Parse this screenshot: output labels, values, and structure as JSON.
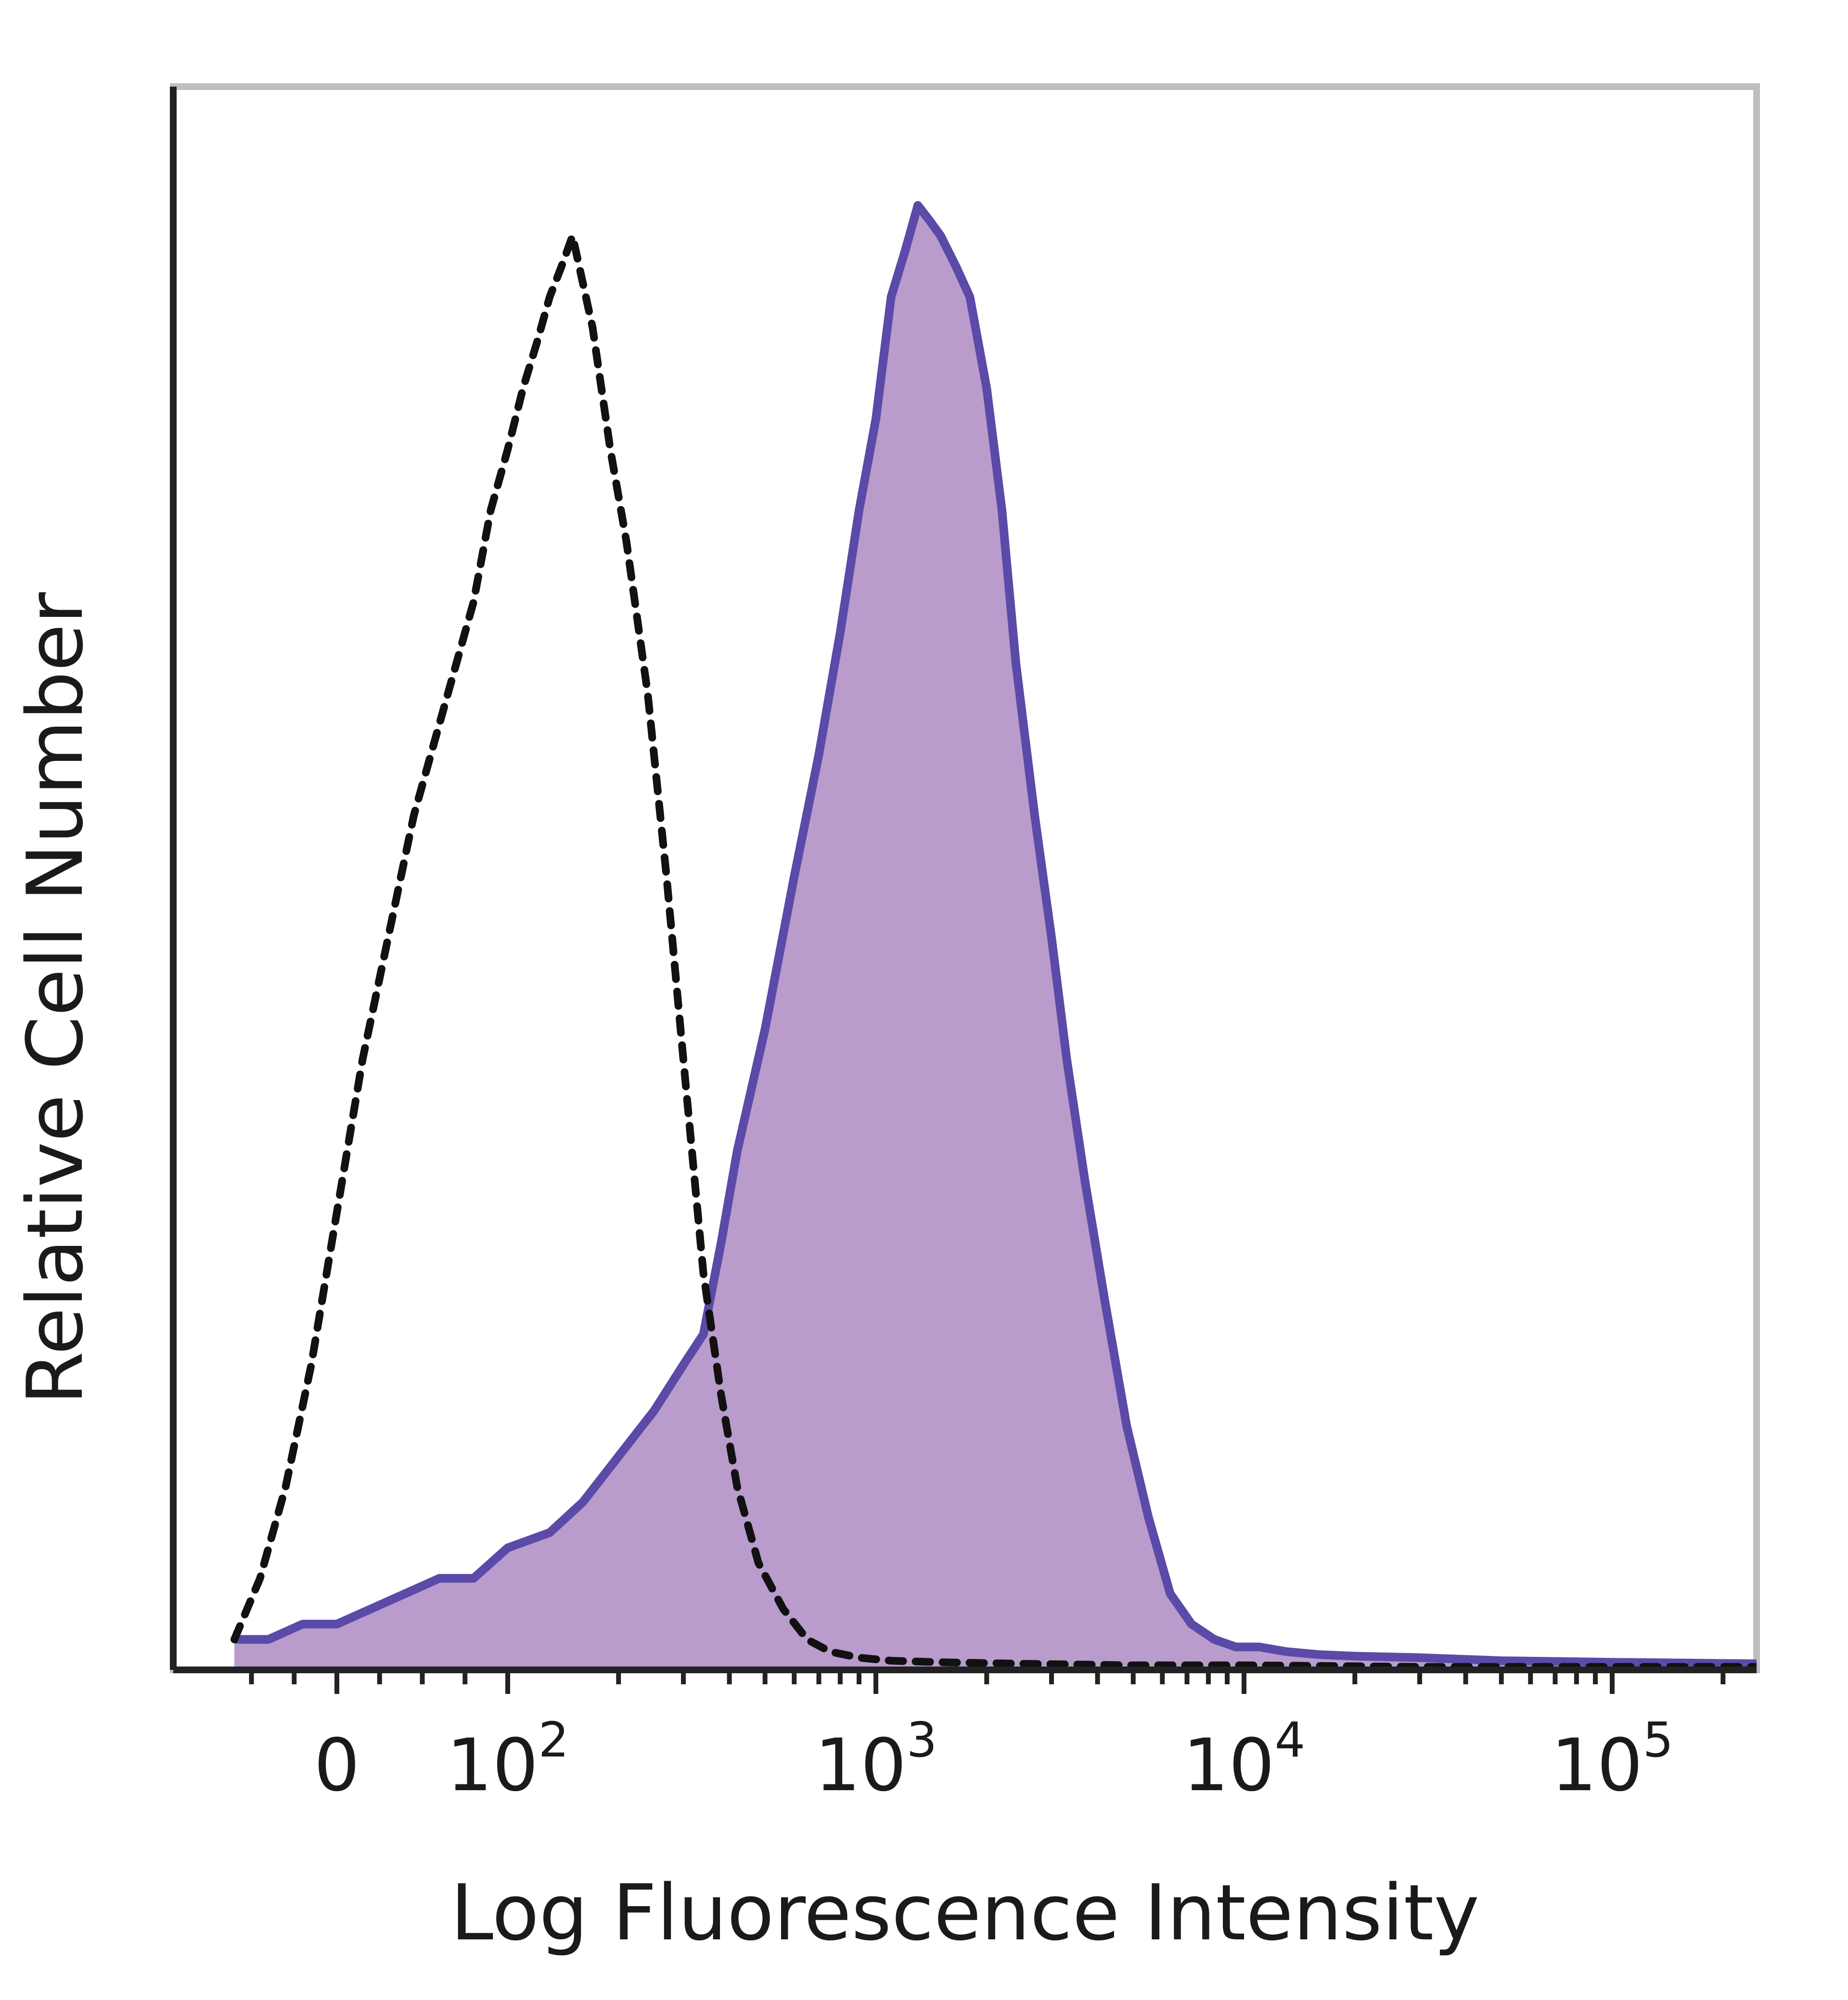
{
  "chart_data": {
    "type": "area",
    "title": "",
    "xlabel": "Log Fluorescence Intensity",
    "ylabel": "Relative Cell Number",
    "x_scale": "biexponential",
    "xlim": [
      -60,
      250000
    ],
    "ylim": [
      0,
      100
    ],
    "grid": false,
    "legend": "none",
    "x_tick_labels": [
      {
        "value": 0,
        "base": "0",
        "exponent": ""
      },
      {
        "value": 100,
        "base": "10",
        "exponent": "2"
      },
      {
        "value": 1000,
        "base": "10",
        "exponent": "3"
      },
      {
        "value": 10000,
        "base": "10",
        "exponent": "4"
      },
      {
        "value": 100000,
        "base": "10",
        "exponent": "5"
      }
    ],
    "colors": {
      "fill": "#b99ccc",
      "stained_outline": "#5b4aa8",
      "control_outline": "#111111",
      "frame": "#bfbfbf",
      "axes": "#222222"
    },
    "series": [
      {
        "style": "filled-solid",
        "x": [
          -60,
          -40,
          -20,
          0,
          20,
          40,
          60,
          80,
          100,
          130,
          160,
          200,
          250,
          300,
          340,
          380,
          420,
          500,
          600,
          700,
          800,
          900,
          1000,
          1100,
          1200,
          1300,
          1400,
          1500,
          1650,
          1800,
          2000,
          2200,
          2400,
          2700,
          3000,
          3300,
          3700,
          4200,
          4800,
          5500,
          6300,
          7200,
          8300,
          9500,
          11000,
          13000,
          16000,
          20000,
          30000,
          50000,
          100000,
          250000
        ],
        "y": [
          2,
          2,
          3,
          3,
          4,
          5,
          6,
          6,
          8,
          9,
          11,
          14,
          17,
          20,
          22,
          28,
          34,
          42,
          52,
          60,
          68,
          76,
          82,
          90,
          93,
          96,
          95,
          94,
          92,
          90,
          84,
          76,
          66,
          56,
          48,
          40,
          32,
          24,
          16,
          10,
          5,
          3,
          2,
          1.5,
          1.5,
          1.2,
          1,
          0.9,
          0.8,
          0.6,
          0.5,
          0.4
        ]
      },
      {
        "style": "dashed",
        "x": [
          -60,
          -45,
          -30,
          -15,
          0,
          15,
          30,
          45,
          60,
          70,
          80,
          90,
          100,
          110,
          120,
          130,
          140,
          150,
          170,
          190,
          210,
          240,
          270,
          300,
          340,
          380,
          420,
          480,
          560,
          650,
          750,
          900,
          1100,
          1500,
          2500,
          5000,
          10000,
          30000,
          100000,
          250000
        ],
        "y": [
          2,
          6,
          12,
          20,
          30,
          40,
          48,
          56,
          62,
          66,
          70,
          76,
          80,
          84,
          87,
          90,
          92,
          94,
          88,
          80,
          74,
          64,
          52,
          40,
          26,
          18,
          12,
          7,
          4,
          2,
          1.2,
          0.8,
          0.6,
          0.5,
          0.4,
          0.3,
          0.3,
          0.2,
          0.2,
          0.2
        ]
      }
    ]
  }
}
